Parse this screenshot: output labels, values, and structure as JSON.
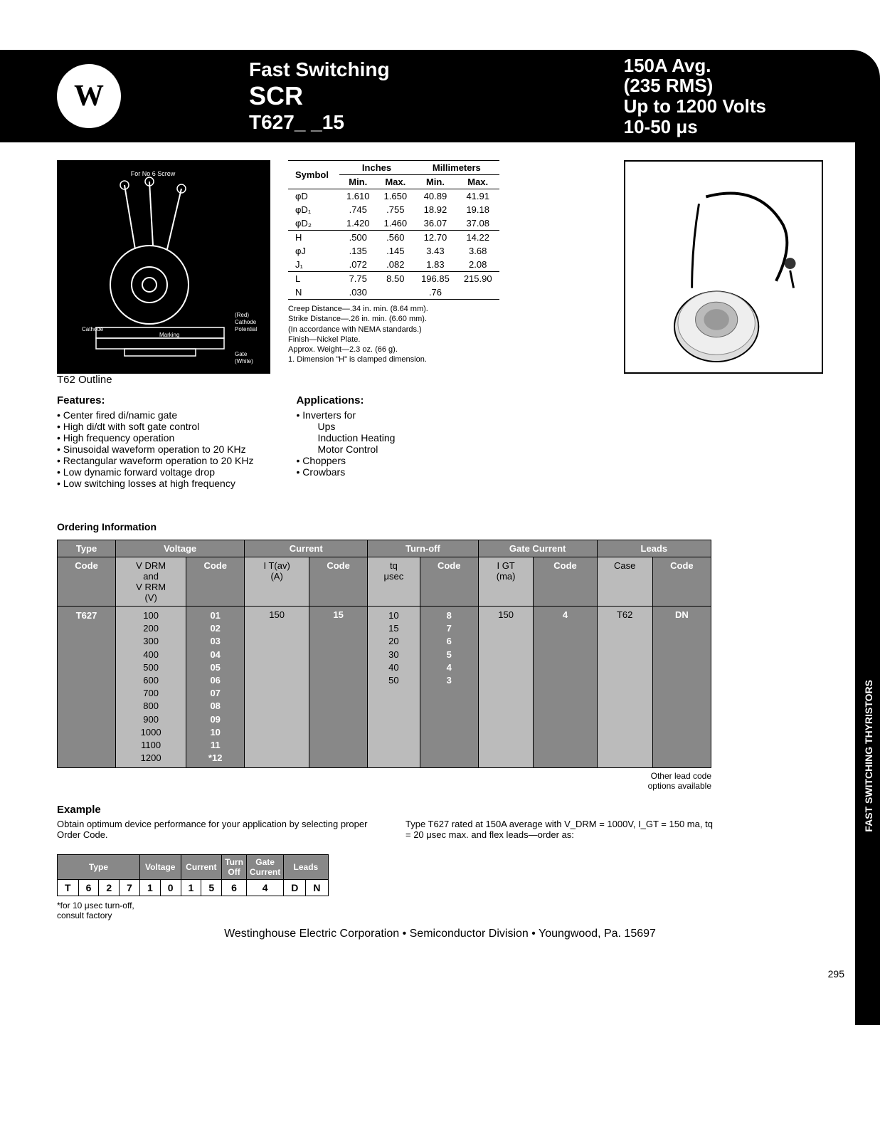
{
  "header": {
    "title1": "Fast Switching",
    "title2": "SCR",
    "title3": "T627_ _15",
    "spec1": "150A Avg.",
    "spec2": "(235 RMS)",
    "spec3": "Up to 1200 Volts",
    "spec4": "10-50 μs"
  },
  "side_tab": "FAST SWITCHING\nTHYRISTORS",
  "dim_table": {
    "head_symbol": "Symbol",
    "head_inches": "Inches",
    "head_mm": "Millimeters",
    "head_min": "Min.",
    "head_max": "Max.",
    "rows": [
      {
        "sym": "φD",
        "imin": "1.610",
        "imax": "1.650",
        "mmin": "40.89",
        "mmax": "41.91"
      },
      {
        "sym": "φD₁",
        "imin": ".745",
        "imax": ".755",
        "mmin": "18.92",
        "mmax": "19.18"
      },
      {
        "sym": "φD₂",
        "imin": "1.420",
        "imax": "1.460",
        "mmin": "36.07",
        "mmax": "37.08"
      },
      {
        "sym": "H",
        "imin": ".500",
        "imax": ".560",
        "mmin": "12.70",
        "mmax": "14.22"
      },
      {
        "sym": "φJ",
        "imin": ".135",
        "imax": ".145",
        "mmin": "3.43",
        "mmax": "3.68"
      },
      {
        "sym": "J₁",
        "imin": ".072",
        "imax": ".082",
        "mmin": "1.83",
        "mmax": "2.08"
      },
      {
        "sym": "L",
        "imin": "7.75",
        "imax": "8.50",
        "mmin": "196.85",
        "mmax": "215.90"
      },
      {
        "sym": "N",
        "imin": ".030",
        "imax": "",
        "mmin": ".76",
        "mmax": ""
      }
    ],
    "notes": [
      "Creep Distance—.34 in. min. (8.64 mm).",
      "Strike Distance—.26 in. min. (6.60 mm).",
      "(In accordance with NEMA standards.)",
      "Finish—Nickel Plate.",
      "Approx. Weight—2.3 oz. (66 g).",
      "1. Dimension \"H\" is clamped dimension."
    ]
  },
  "outline_label": "T62 Outline",
  "features": {
    "heading": "Features:",
    "items": [
      "Center fired di/namic gate",
      "High di/dt with soft gate control",
      "High frequency operation",
      "Sinusoidal waveform operation to 20 KHz",
      "Rectangular waveform operation to 20 KHz",
      "Low dynamic forward voltage drop",
      "Low switching losses at high frequency"
    ]
  },
  "applications": {
    "heading": "Applications:",
    "items": [
      {
        "text": "Inverters for",
        "bullet": true
      },
      {
        "text": "Ups",
        "indent": true
      },
      {
        "text": "Induction Heating",
        "indent": true
      },
      {
        "text": "Motor Control",
        "indent": true
      },
      {
        "text": "Choppers",
        "bullet": true
      },
      {
        "text": "Crowbars",
        "bullet": true
      }
    ]
  },
  "ordering": {
    "heading": "Ordering Information",
    "headers": {
      "type": "Type",
      "voltage": "Voltage",
      "current": "Current",
      "turnoff": "Turn-off",
      "gate": "Gate Current",
      "leads": "Leads",
      "code": "Code",
      "vdrm": "V DRM\nand\nV RRM\n(V)",
      "itav": "I T(av)\n(A)",
      "tq": "tq\nμsec",
      "igt": "I GT\n(ma)",
      "case_h": "Case"
    },
    "type_val": "T627",
    "voltage_vals": [
      "100",
      "200",
      "300",
      "400",
      "500",
      "600",
      "700",
      "800",
      "900",
      "1000",
      "1100",
      "1200"
    ],
    "voltage_codes": [
      "01",
      "02",
      "03",
      "04",
      "05",
      "06",
      "07",
      "08",
      "09",
      "10",
      "11",
      "*12"
    ],
    "current_val": "150",
    "current_code": "15",
    "tq_vals": [
      "10",
      "15",
      "20",
      "30",
      "40",
      "50"
    ],
    "tq_codes": [
      "8",
      "7",
      "6",
      "5",
      "4",
      "3"
    ],
    "igt_val": "150",
    "igt_code": "4",
    "case_val": "T62",
    "leads_code": "DN",
    "other_lead": "Other lead code\noptions available"
  },
  "example": {
    "heading": "Example",
    "left": "Obtain optimum device performance for your application by selecting proper Order Code.",
    "right": "Type T627 rated at 150A average with V_DRM = 1000V, I_GT = 150 ma, tq = 20 μsec max. and flex leads—order as:",
    "table_headers": [
      "Type",
      "Voltage",
      "Current",
      "Turn\nOff",
      "Gate\nCurrent",
      "Leads"
    ],
    "table_cells": [
      "T",
      "6",
      "2",
      "7",
      "1",
      "0",
      "1",
      "5",
      "6",
      "4",
      "D",
      "N"
    ],
    "footnote": "*for 10 μsec turn-off,\nconsult factory"
  },
  "footer": "Westinghouse Electric Corporation • Semiconductor Division • Youngwood, Pa. 15697",
  "page_num": "295"
}
